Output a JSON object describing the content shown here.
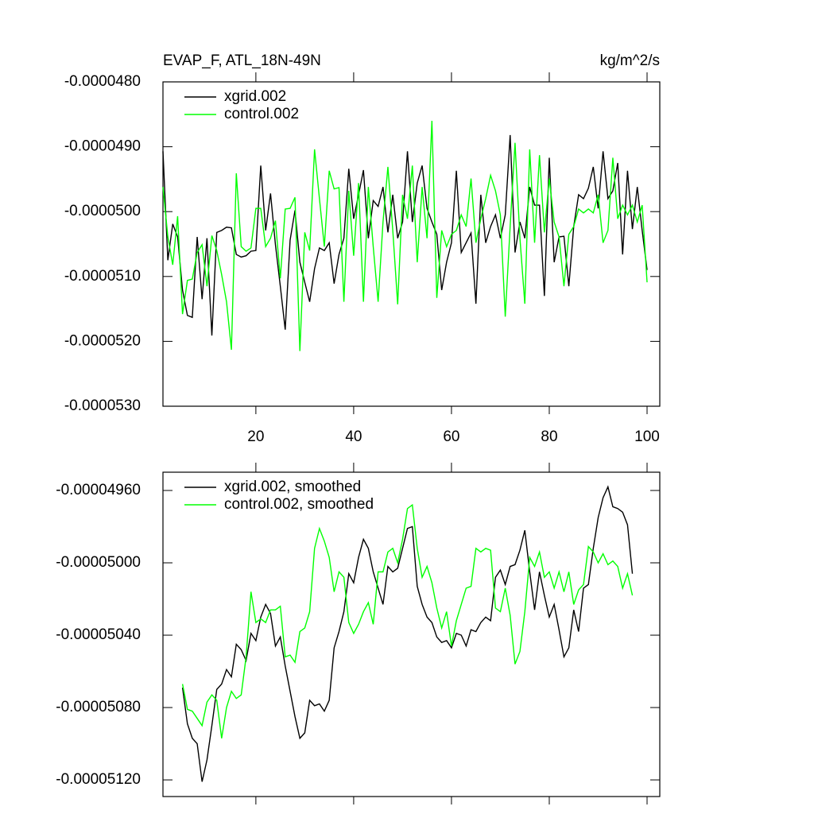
{
  "chart_data": [
    {
      "type": "line",
      "title": "EVAP_F, ATL_18N-49N",
      "units": "kg/m^2/s",
      "xlim": [
        1,
        102.6
      ],
      "xticks": [
        20,
        40,
        60,
        80,
        100
      ],
      "ylim": [
        -5.3e-05,
        -4.8e-05
      ],
      "yticks": [
        {
          "value": -4.8e-05,
          "label": "-0.0000480"
        },
        {
          "value": -4.9e-05,
          "label": "-0.0000490"
        },
        {
          "value": -5e-05,
          "label": "-0.0000500"
        },
        {
          "value": -5.1e-05,
          "label": "-0.0000510"
        },
        {
          "value": -5.2e-05,
          "label": "-0.0000520"
        },
        {
          "value": -5.3e-05,
          "label": "-0.0000530"
        }
      ],
      "x": [
        1,
        2,
        3,
        4,
        5,
        6,
        7,
        8,
        9,
        10,
        11,
        12,
        13,
        14,
        15,
        16,
        17,
        18,
        19,
        20,
        21,
        22,
        23,
        24,
        25,
        26,
        27,
        28,
        29,
        30,
        31,
        32,
        33,
        34,
        35,
        36,
        37,
        38,
        39,
        40,
        41,
        42,
        43,
        44,
        45,
        46,
        47,
        48,
        49,
        50,
        51,
        52,
        53,
        54,
        55,
        56,
        57,
        58,
        59,
        60,
        61,
        62,
        63,
        64,
        65,
        66,
        67,
        68,
        69,
        70,
        71,
        72,
        73,
        74,
        75,
        76,
        77,
        78,
        79,
        80,
        81,
        82,
        83,
        84,
        85,
        86,
        87,
        88,
        89,
        90,
        91,
        92,
        93,
        94,
        95,
        96,
        97,
        98,
        99,
        100
      ],
      "series": [
        {
          "name": "xgrid.002",
          "color": "#000000",
          "values": [
            -4.907e-05,
            -5.075e-05,
            -5.019e-05,
            -5.039e-05,
            -5.121e-05,
            -5.16e-05,
            -5.163e-05,
            -5.039e-05,
            -5.135e-05,
            -5.041e-05,
            -5.191e-05,
            -5.032e-05,
            -5.029e-05,
            -5.024e-05,
            -5.025e-05,
            -5.066e-05,
            -5.07e-05,
            -5.068e-05,
            -5.061e-05,
            -5.06e-05,
            -4.929e-05,
            -5.029e-05,
            -4.972e-05,
            -5.051e-05,
            -5.115e-05,
            -5.182e-05,
            -5.044e-05,
            -4.998e-05,
            -5.078e-05,
            -5.109e-05,
            -5.139e-05,
            -5.088e-05,
            -5.056e-05,
            -5.06e-05,
            -5.048e-05,
            -5.111e-05,
            -5.066e-05,
            -5.041e-05,
            -4.934e-05,
            -5.011e-05,
            -4.974e-05,
            -4.936e-05,
            -5.041e-05,
            -4.983e-05,
            -4.992e-05,
            -4.962e-05,
            -5.032e-05,
            -4.974e-05,
            -5.041e-05,
            -5.016e-05,
            -4.907e-05,
            -5.016e-05,
            -4.956e-05,
            -4.929e-05,
            -4.995e-05,
            -5.016e-05,
            -5.035e-05,
            -5.121e-05,
            -5.078e-05,
            -5.048e-05,
            -4.937e-05,
            -5.063e-05,
            -5.048e-05,
            -5.033e-05,
            -5.142e-05,
            -4.974e-05,
            -5.048e-05,
            -5.023e-05,
            -5.005e-05,
            -5.041e-05,
            -5.005e-05,
            -4.882e-05,
            -5.063e-05,
            -5.016e-05,
            -5.041e-05,
            -4.962e-05,
            -4.99e-05,
            -4.99e-05,
            -5.13e-05,
            -4.917e-05,
            -5.078e-05,
            -5.039e-05,
            -5.038e-05,
            -5.115e-05,
            -5.023e-05,
            -4.974e-05,
            -4.98e-05,
            -4.964e-05,
            -4.931e-05,
            -4.995e-05,
            -4.907e-05,
            -4.98e-05,
            -4.968e-05,
            -4.925e-05,
            -5.066e-05,
            -4.937e-05,
            -5.027e-05,
            -4.962e-05,
            -5.029e-05,
            -5.09e-05
          ]
        },
        {
          "name": "control.002",
          "color": "#00ff00",
          "values": [
            -4.962e-05,
            -5.039e-05,
            -5.082e-05,
            -5.007e-05,
            -5.158e-05,
            -5.106e-05,
            -5.104e-05,
            -5.063e-05,
            -5.051e-05,
            -5.115e-05,
            -5.037e-05,
            -5.06e-05,
            -5.097e-05,
            -5.139e-05,
            -5.213e-05,
            -4.941e-05,
            -5.054e-05,
            -5.061e-05,
            -5.056e-05,
            -4.995e-05,
            -4.995e-05,
            -5.054e-05,
            -5.041e-05,
            -5.014e-05,
            -5.103e-05,
            -4.996e-05,
            -4.995e-05,
            -4.978e-05,
            -5.215e-05,
            -5.032e-05,
            -5.06e-05,
            -4.904e-05,
            -4.98e-05,
            -5.054e-05,
            -4.937e-05,
            -4.965e-05,
            -4.963e-05,
            -5.139e-05,
            -4.968e-05,
            -5.068e-05,
            -4.956e-05,
            -5.139e-05,
            -4.962e-05,
            -5.054e-05,
            -5.139e-05,
            -5.016e-05,
            -4.931e-05,
            -5.029e-05,
            -5.143e-05,
            -4.974e-05,
            -5.011e-05,
            -4.929e-05,
            -5.078e-05,
            -4.962e-05,
            -5.041e-05,
            -4.86e-05,
            -5.133e-05,
            -5.029e-05,
            -5.054e-05,
            -5.035e-05,
            -5.029e-05,
            -5.005e-05,
            -5.023e-05,
            -4.949e-05,
            -5.048e-05,
            -5.011e-05,
            -4.98e-05,
            -4.944e-05,
            -4.968e-05,
            -5.005e-05,
            -5.162e-05,
            -5.023e-05,
            -4.894e-05,
            -5.041e-05,
            -5.142e-05,
            -4.904e-05,
            -5.048e-05,
            -4.913e-05,
            -5.032e-05,
            -4.949e-05,
            -5.016e-05,
            -5.039e-05,
            -5.115e-05,
            -5.035e-05,
            -5.023e-05,
            -4.996e-05,
            -5.002e-05,
            -4.996e-05,
            -5.002e-05,
            -4.974e-05,
            -5.048e-05,
            -5.029e-05,
            -4.917e-05,
            -5.011e-05,
            -4.99e-05,
            -5.005e-05,
            -4.99e-05,
            -5.016e-05,
            -4.99e-05,
            -5.109e-05
          ]
        }
      ]
    },
    {
      "type": "line",
      "xlim": [
        1,
        102.6
      ],
      "xticks": [
        20,
        40,
        60,
        80,
        100
      ],
      "ylim": [
        -5.1292e-05,
        -4.9499e-05
      ],
      "yticks": [
        {
          "value": -4.96e-05,
          "label": "-0.00004960"
        },
        {
          "value": -5e-05,
          "label": "-0.00005000"
        },
        {
          "value": -5.04e-05,
          "label": "-0.00005040"
        },
        {
          "value": -5.08e-05,
          "label": "-0.00005080"
        },
        {
          "value": -5.12e-05,
          "label": "-0.00005120"
        }
      ],
      "x": [
        5,
        6,
        7,
        8,
        9,
        10,
        11,
        12,
        13,
        14,
        15,
        16,
        17,
        18,
        19,
        20,
        21,
        22,
        23,
        24,
        25,
        26,
        27,
        28,
        29,
        30,
        31,
        32,
        33,
        34,
        35,
        36,
        37,
        38,
        39,
        40,
        41,
        42,
        43,
        44,
        45,
        46,
        47,
        48,
        49,
        50,
        51,
        52,
        53,
        54,
        55,
        56,
        57,
        58,
        59,
        60,
        61,
        62,
        63,
        64,
        65,
        66,
        67,
        68,
        69,
        70,
        71,
        72,
        73,
        74,
        75,
        76,
        77,
        78,
        79,
        80,
        81,
        82,
        83,
        84,
        85,
        86,
        87,
        88,
        89,
        90,
        91,
        92,
        93,
        94,
        95,
        96,
        97
      ],
      "series": [
        {
          "name": "xgrid.002, smoothed",
          "color": "#000000",
          "values": [
            -5.069e-05,
            -5.089e-05,
            -5.097e-05,
            -5.1e-05,
            -5.121e-05,
            -5.109e-05,
            -5.09e-05,
            -5.07e-05,
            -5.067e-05,
            -5.059e-05,
            -5.063e-05,
            -5.045e-05,
            -5.048e-05,
            -5.054e-05,
            -5.039e-05,
            -5.043e-05,
            -5.03e-05,
            -5.023e-05,
            -5.028e-05,
            -5.046e-05,
            -5.041e-05,
            -5.057e-05,
            -5.071e-05,
            -5.085e-05,
            -5.097e-05,
            -5.094e-05,
            -5.076e-05,
            -5.079e-05,
            -5.078e-05,
            -5.082e-05,
            -5.076e-05,
            -5.047e-05,
            -5.038e-05,
            -5.027e-05,
            -5.006e-05,
            -5.011e-05,
            -4.997e-05,
            -4.987e-05,
            -4.992e-05,
            -5.005e-05,
            -5.014e-05,
            -5.023e-05,
            -5.002e-05,
            -5.005e-05,
            -5.003e-05,
            -4.992e-05,
            -4.981e-05,
            -4.98e-05,
            -5.013e-05,
            -5.023e-05,
            -5.03e-05,
            -5.033e-05,
            -5.041e-05,
            -5.044e-05,
            -5.043e-05,
            -5.047e-05,
            -5.039e-05,
            -5.04e-05,
            -5.046e-05,
            -5.037e-05,
            -5.038e-05,
            -5.033e-05,
            -5.03e-05,
            -5.032e-05,
            -5.008e-05,
            -5.004e-05,
            -5.012e-05,
            -5.002e-05,
            -5.001e-05,
            -4.993e-05,
            -4.982e-05,
            -5.005e-05,
            -5.026e-05,
            -5.005e-05,
            -5.018e-05,
            -5.03e-05,
            -5.023e-05,
            -5.037e-05,
            -5.052e-05,
            -5.047e-05,
            -5.026e-05,
            -5.038e-05,
            -5.014e-05,
            -5.012e-05,
            -4.992e-05,
            -4.975e-05,
            -4.964e-05,
            -4.958e-05,
            -4.969e-05,
            -4.97e-05,
            -4.972e-05,
            -4.979e-05,
            -5.006e-05
          ]
        },
        {
          "name": "control.002, smoothed",
          "color": "#00ff00",
          "values": [
            -5.067e-05,
            -5.081e-05,
            -5.082e-05,
            -5.086e-05,
            -5.09e-05,
            -5.077e-05,
            -5.073e-05,
            -5.076e-05,
            -5.097e-05,
            -5.08e-05,
            -5.071e-05,
            -5.075e-05,
            -5.073e-05,
            -5.052e-05,
            -5.016e-05,
            -5.033e-05,
            -5.031e-05,
            -5.033e-05,
            -5.026e-05,
            -5.026e-05,
            -5.024e-05,
            -5.052e-05,
            -5.051e-05,
            -5.055e-05,
            -5.038e-05,
            -5.036e-05,
            -5.027e-05,
            -4.992e-05,
            -4.981e-05,
            -4.988e-05,
            -4.997e-05,
            -5.016e-05,
            -5.005e-05,
            -5.008e-05,
            -5.033e-05,
            -5.039e-05,
            -5.034e-05,
            -5.027e-05,
            -5.022e-05,
            -5.034e-05,
            -5.005e-05,
            -5.005e-05,
            -4.994e-05,
            -4.992e-05,
            -5e-05,
            -4.987e-05,
            -4.97e-05,
            -4.968e-05,
            -4.992e-05,
            -5.008e-05,
            -5.002e-05,
            -5.011e-05,
            -5.025e-05,
            -5.036e-05,
            -5.027e-05,
            -5.046e-05,
            -5.032e-05,
            -5.023e-05,
            -5.014e-05,
            -5.013e-05,
            -4.992e-05,
            -4.994e-05,
            -4.992e-05,
            -4.993e-05,
            -5.025e-05,
            -5.027e-05,
            -5.014e-05,
            -5.029e-05,
            -5.056e-05,
            -5.049e-05,
            -5.027e-05,
            -4.997e-05,
            -5.002e-05,
            -4.994e-05,
            -5.008e-05,
            -5.005e-05,
            -5.014e-05,
            -5.005e-05,
            -5.016e-05,
            -5.005e-05,
            -5.023e-05,
            -5.015e-05,
            -5.012e-05,
            -4.991e-05,
            -4.994e-05,
            -5e-05,
            -4.995e-05,
            -5.001e-05,
            -4.999e-05,
            -5.002e-05,
            -5.014e-05,
            -5.006e-05,
            -5.018e-05
          ]
        }
      ]
    }
  ]
}
